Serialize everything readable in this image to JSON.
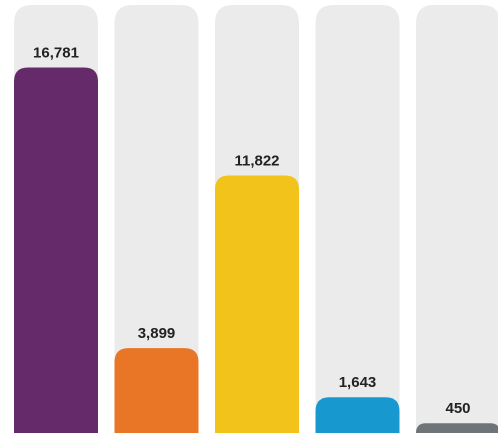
{
  "chart_data": {
    "type": "bar",
    "title": "",
    "xlabel": "",
    "ylabel": "",
    "ylim": [
      0,
      18500
    ],
    "grid": false,
    "legend": "none",
    "data_labels": true,
    "background_tracks": true,
    "values": [
      16781,
      3899,
      11822,
      1643,
      450
    ],
    "value_labels": [
      "16,781",
      "3,899",
      "11,822",
      "1,643",
      "450"
    ],
    "colors": [
      "#642a69",
      "#e87626",
      "#f2c31a",
      "#1799d0",
      "#6e7478"
    ]
  }
}
